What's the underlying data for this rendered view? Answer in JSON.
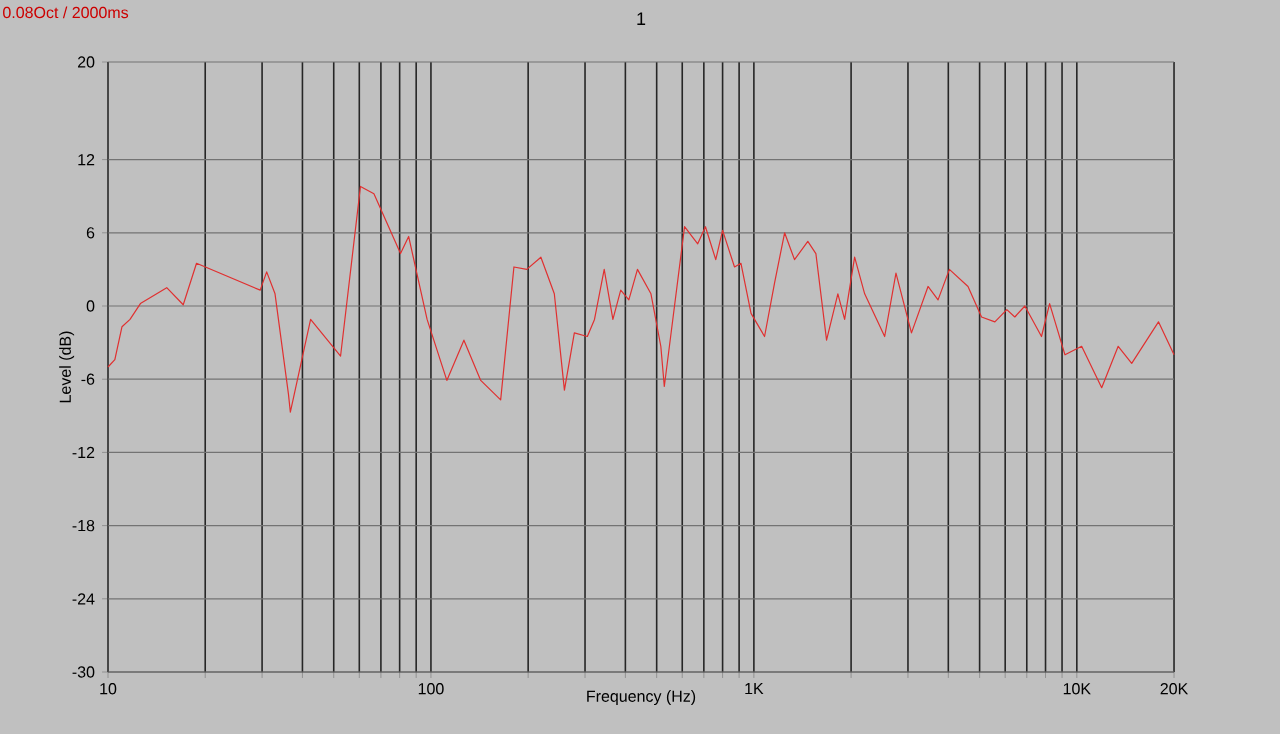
{
  "chart_data": {
    "type": "line",
    "title": "1",
    "xlabel": "Frequency (Hz)",
    "ylabel": "Level (dB)",
    "annotations": [
      "0.08Oct / 2000ms"
    ],
    "log": "x",
    "grid": true,
    "line_style": "solid",
    "xlim": [
      10,
      20000
    ],
    "ylim": [
      -30,
      20
    ],
    "xticks": [
      10,
      {
        "value": 20,
        "label": null
      },
      {
        "value": 30,
        "label": null
      },
      {
        "value": 40,
        "label": null
      },
      {
        "value": 50,
        "label": null
      },
      {
        "value": 60,
        "label": null
      },
      {
        "value": 70,
        "label": null
      },
      {
        "value": 80,
        "label": null
      },
      {
        "value": 90,
        "label": null
      },
      100,
      {
        "value": 200,
        "label": null
      },
      {
        "value": 300,
        "label": null
      },
      {
        "value": 400,
        "label": null
      },
      {
        "value": 500,
        "label": null
      },
      {
        "value": 600,
        "label": null
      },
      {
        "value": 700,
        "label": null
      },
      {
        "value": 800,
        "label": null
      },
      {
        "value": 900,
        "label": null
      },
      {
        "value": 1000,
        "label": "1K"
      },
      {
        "value": 2000,
        "label": null
      },
      {
        "value": 3000,
        "label": null
      },
      {
        "value": 4000,
        "label": null
      },
      {
        "value": 5000,
        "label": null
      },
      {
        "value": 6000,
        "label": null
      },
      {
        "value": 7000,
        "label": null
      },
      {
        "value": 8000,
        "label": null
      },
      {
        "value": 9000,
        "label": null
      },
      {
        "value": 10000,
        "label": "10K"
      },
      {
        "value": 20000,
        "label": "20K"
      }
    ],
    "yticks": [
      -30,
      -24,
      -18,
      -12,
      -6,
      0,
      6,
      12,
      20
    ],
    "series": [
      {
        "color": "#e03030",
        "x": [
          10,
          10.5,
          11.05,
          11.7,
          12.6,
          15.2,
          17.1,
          18.8,
          29.6,
          31,
          32.9,
          36.2,
          36.7,
          42.4,
          52.5,
          60.5,
          66.6,
          80.5,
          85.3,
          97.3,
          112,
          126.5,
          142.6,
          164.4,
          180.7,
          198,
          219,
          241,
          259,
          278,
          305,
          321,
          344,
          366,
          387,
          410,
          436,
          480,
          515,
          528,
          610,
          670,
          708,
          762,
          800,
          871,
          912,
          980,
          1079,
          1159,
          1245,
          1336,
          1469,
          1556,
          1679,
          1820,
          1910,
          2051,
          2203,
          2541,
          2754,
          3076,
          3462,
          3718,
          4031,
          4603,
          5069,
          5575,
          6071,
          6427,
          6903,
          7775,
          8236,
          9190,
          10350,
          11940,
          13430,
          14790,
          17900,
          20000
        ],
        "values": [
          -5.0,
          -4.4,
          -1.7,
          -1.1,
          0.2,
          1.5,
          0.1,
          3.5,
          1.3,
          2.8,
          1.0,
          -7.2,
          -8.7,
          -1.1,
          -4.1,
          9.8,
          9.2,
          4.3,
          5.7,
          -1.1,
          -6.1,
          -2.8,
          -6.1,
          -7.7,
          3.2,
          3.0,
          4.0,
          1.0,
          -6.9,
          -2.2,
          -2.5,
          -1.1,
          3.0,
          -1.1,
          1.3,
          0.5,
          3.0,
          1.0,
          -3.3,
          -6.6,
          6.5,
          5.1,
          6.5,
          3.8,
          6.2,
          3.2,
          3.5,
          -0.6,
          -2.5,
          1.9,
          6.0,
          3.8,
          5.3,
          4.3,
          -2.8,
          1.0,
          -1.1,
          4.0,
          1.0,
          -2.5,
          2.7,
          -2.2,
          1.6,
          0.5,
          3.0,
          1.6,
          -0.9,
          -1.3,
          -0.3,
          -0.9,
          0.0,
          -2.5,
          0.2,
          -4.0,
          -3.3,
          -6.7,
          -3.3,
          -4.7,
          -1.3,
          -4.0
        ]
      }
    ]
  }
}
